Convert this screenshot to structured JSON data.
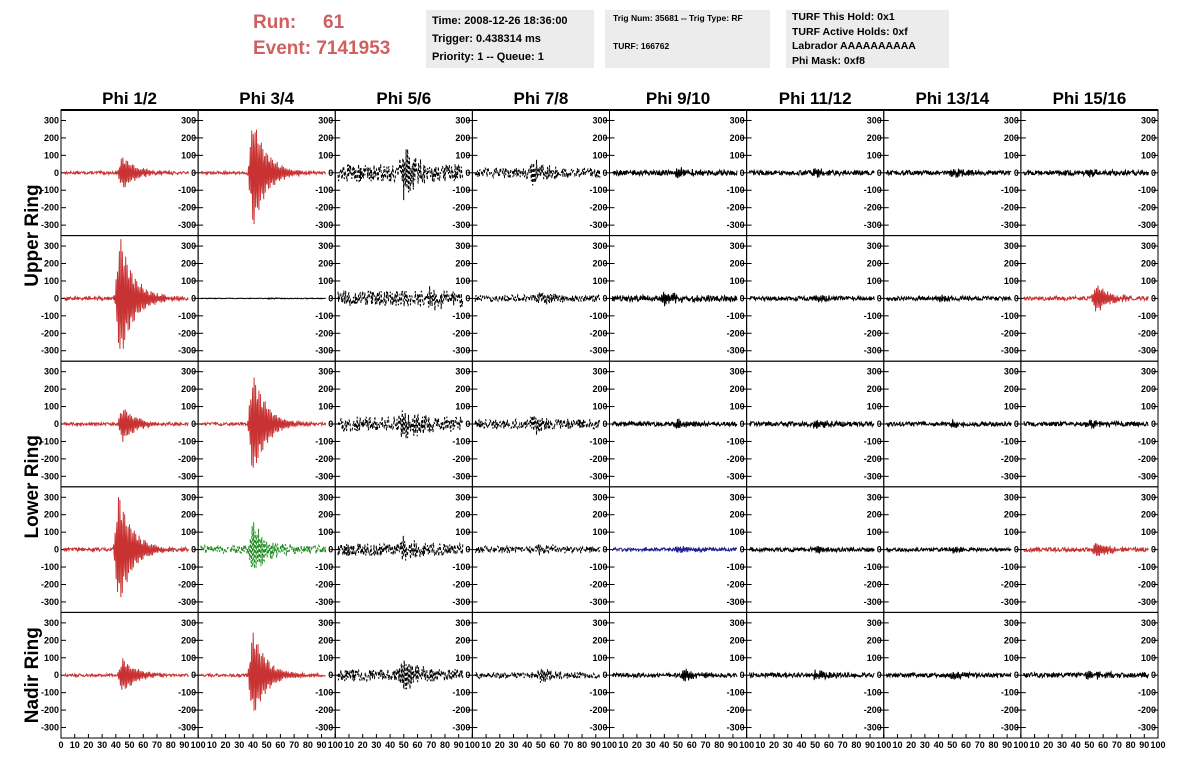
{
  "header": {
    "run_label": "Run:",
    "run_value": "61",
    "event_label": "Event:",
    "event_value": "7141953",
    "time": "Time: 2008-12-26 18:36:00",
    "trigger": "Trigger: 0.438314 ms",
    "priority": "Priority: 1 -- Queue: 1",
    "trig_num": "Trig Num: 35681 -- Trig Type: RF",
    "turf": "TURF: 166762",
    "turf_hold": "TURF This Hold: 0x1",
    "turf_active": "TURF Active Holds: 0xf",
    "labrador": "Labrador AAAAAAAAAA",
    "phi_mask": "Phi Mask: 0xf8"
  },
  "colors": {
    "red": "#c83232",
    "black": "#000000",
    "green": "#1e8c1e",
    "blue": "#1e1e8c",
    "header_red": "#d06060",
    "box_gray": "#ececec"
  },
  "chart_data": {
    "type": "line",
    "columns": [
      "Phi 1/2",
      "Phi 3/4",
      "Phi 5/6",
      "Phi 7/8",
      "Phi 9/10",
      "Phi 11/12",
      "Phi 13/14",
      "Phi 15/16"
    ],
    "rows": [
      "Upper Ring",
      "Lower Ring",
      "Nadir Ring"
    ],
    "y_ticks": [
      300,
      200,
      100,
      0,
      -100,
      -200,
      -300
    ],
    "y_tick_labels": [
      "300",
      "200",
      "100",
      "0",
      "-100",
      "-200",
      "-300"
    ],
    "ylim": [
      -360,
      360
    ],
    "x_ticks": [
      0,
      10,
      20,
      30,
      40,
      50,
      60,
      70,
      80,
      90,
      100
    ],
    "x_tick_labels": [
      "0",
      "10",
      "20",
      "30",
      "40",
      "50",
      "60",
      "70",
      "80",
      "90",
      "100"
    ],
    "xlim": [
      0,
      100
    ],
    "grid": false,
    "waveforms": [
      {
        "cell": "r0c0",
        "color": "red",
        "style": "solid",
        "peak_x": 45,
        "peak_amp": 100,
        "noise": 8
      },
      {
        "cell": "r0c1",
        "color": "red",
        "style": "solid",
        "peak_x": 40,
        "peak_amp": 320,
        "noise": 8
      },
      {
        "cell": "r0c2",
        "color": "black",
        "style": "dashed",
        "peak_x": 50,
        "peak_amp": 130,
        "noise": 50
      },
      {
        "cell": "r0c3",
        "color": "black",
        "style": "dashed",
        "peak_x": 45,
        "peak_amp": 60,
        "noise": 30
      },
      {
        "cell": "r0c4",
        "color": "black",
        "style": "solid",
        "peak_x": 50,
        "peak_amp": 25,
        "noise": 15
      },
      {
        "cell": "r0c5",
        "color": "black",
        "style": "solid",
        "peak_x": 50,
        "peak_amp": 20,
        "noise": 14
      },
      {
        "cell": "r0c6",
        "color": "black",
        "style": "solid",
        "peak_x": 50,
        "peak_amp": 20,
        "noise": 14
      },
      {
        "cell": "r0c7",
        "color": "black",
        "style": "solid",
        "peak_x": 50,
        "peak_amp": 25,
        "noise": 15
      },
      {
        "cell": "r1c0",
        "color": "red",
        "style": "solid",
        "peak_x": 43,
        "peak_amp": 360,
        "noise": 10
      },
      {
        "cell": "r1c1",
        "color": "black",
        "style": "solid",
        "peak_x": 50,
        "peak_amp": 3,
        "noise": 2
      },
      {
        "cell": "r1c2",
        "color": "black",
        "style": "dashed",
        "peak_x": 70,
        "peak_amp": 60,
        "noise": 45
      },
      {
        "cell": "r1c3",
        "color": "black",
        "style": "dashed",
        "peak_x": 50,
        "peak_amp": 25,
        "noise": 20
      },
      {
        "cell": "r1c4",
        "color": "black",
        "style": "solid",
        "peak_x": 40,
        "peak_amp": 40,
        "noise": 18
      },
      {
        "cell": "r1c5",
        "color": "black",
        "style": "solid",
        "peak_x": 50,
        "peak_amp": 20,
        "noise": 12
      },
      {
        "cell": "r1c6",
        "color": "black",
        "style": "solid",
        "peak_x": 40,
        "peak_amp": 20,
        "noise": 12
      },
      {
        "cell": "r1c7",
        "color": "red",
        "style": "solid",
        "peak_x": 55,
        "peak_amp": 80,
        "noise": 12
      },
      {
        "cell": "r2c0",
        "color": "red",
        "style": "solid",
        "peak_x": 45,
        "peak_amp": 100,
        "noise": 8
      },
      {
        "cell": "r2c1",
        "color": "red",
        "style": "solid",
        "peak_x": 40,
        "peak_amp": 300,
        "noise": 8
      },
      {
        "cell": "r2c2",
        "color": "black",
        "style": "dashed",
        "peak_x": 50,
        "peak_amp": 70,
        "noise": 45
      },
      {
        "cell": "r2c3",
        "color": "black",
        "style": "dashed",
        "peak_x": 45,
        "peak_amp": 45,
        "noise": 28
      },
      {
        "cell": "r2c4",
        "color": "black",
        "style": "solid",
        "peak_x": 50,
        "peak_amp": 20,
        "noise": 13
      },
      {
        "cell": "r2c5",
        "color": "black",
        "style": "solid",
        "peak_x": 50,
        "peak_amp": 25,
        "noise": 13
      },
      {
        "cell": "r2c6",
        "color": "black",
        "style": "solid",
        "peak_x": 50,
        "peak_amp": 18,
        "noise": 12
      },
      {
        "cell": "r2c7",
        "color": "black",
        "style": "solid",
        "peak_x": 50,
        "peak_amp": 20,
        "noise": 13
      },
      {
        "cell": "r3c0",
        "color": "red",
        "style": "solid",
        "peak_x": 42,
        "peak_amp": 330,
        "noise": 10
      },
      {
        "cell": "r3c1",
        "color": "green",
        "style": "dashed",
        "peak_x": 40,
        "peak_amp": 150,
        "noise": 25
      },
      {
        "cell": "r3c2",
        "color": "black",
        "style": "dashed",
        "peak_x": 50,
        "peak_amp": 50,
        "noise": 35
      },
      {
        "cell": "r3c3",
        "color": "black",
        "style": "dashed",
        "peak_x": 50,
        "peak_amp": 25,
        "noise": 20
      },
      {
        "cell": "r3c4",
        "color": "blue",
        "style": "solid",
        "peak_x": 50,
        "peak_amp": 15,
        "noise": 10
      },
      {
        "cell": "r3c5",
        "color": "black",
        "style": "solid",
        "peak_x": 50,
        "peak_amp": 18,
        "noise": 11
      },
      {
        "cell": "r3c6",
        "color": "black",
        "style": "solid",
        "peak_x": 50,
        "peak_amp": 15,
        "noise": 10
      },
      {
        "cell": "r3c7",
        "color": "red",
        "style": "solid",
        "peak_x": 55,
        "peak_amp": 50,
        "noise": 12
      },
      {
        "cell": "r4c0",
        "color": "red",
        "style": "solid",
        "peak_x": 45,
        "peak_amp": 100,
        "noise": 8
      },
      {
        "cell": "r4c1",
        "color": "red",
        "style": "solid",
        "peak_x": 40,
        "peak_amp": 250,
        "noise": 8
      },
      {
        "cell": "r4c2",
        "color": "black",
        "style": "dashed",
        "peak_x": 50,
        "peak_amp": 80,
        "noise": 35
      },
      {
        "cell": "r4c3",
        "color": "black",
        "style": "dashed",
        "peak_x": 50,
        "peak_amp": 30,
        "noise": 18
      },
      {
        "cell": "r4c4",
        "color": "black",
        "style": "solid",
        "peak_x": 55,
        "peak_amp": 30,
        "noise": 12
      },
      {
        "cell": "r4c5",
        "color": "black",
        "style": "solid",
        "peak_x": 50,
        "peak_amp": 25,
        "noise": 13
      },
      {
        "cell": "r4c6",
        "color": "black",
        "style": "solid",
        "peak_x": 50,
        "peak_amp": 20,
        "noise": 12
      },
      {
        "cell": "r4c7",
        "color": "black",
        "style": "solid",
        "peak_x": 50,
        "peak_amp": 25,
        "noise": 14
      }
    ]
  }
}
